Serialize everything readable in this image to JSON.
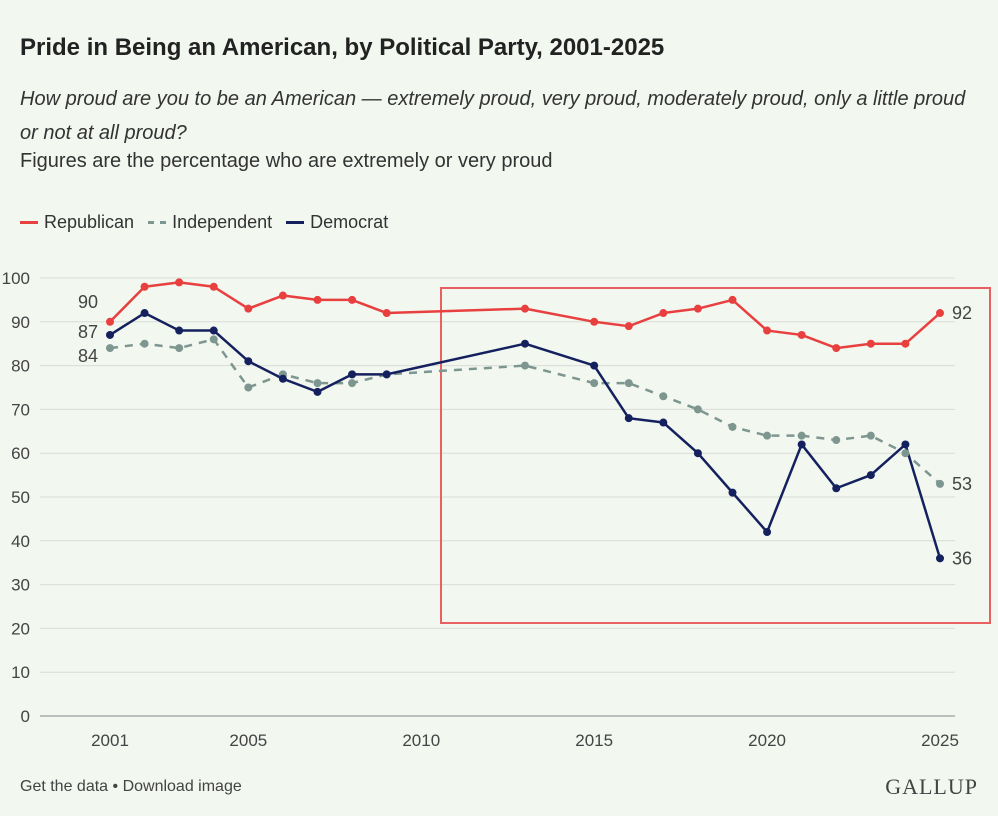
{
  "chart_data": {
    "type": "line",
    "title": "Pride in Being an American, by Political Party, 2001-2025",
    "subtitle": "How proud are you to be an American — extremely proud, very proud, moderately proud, only a little proud or not at all proud?",
    "note": "Figures are the percentage who are extremely or very proud",
    "x": [
      2001,
      2002,
      2003,
      2004,
      2005,
      2006,
      2007,
      2008,
      2009,
      2013,
      2015,
      2016,
      2017,
      2018,
      2019,
      2020,
      2021,
      2022,
      2023,
      2024,
      2025
    ],
    "xticks": [
      "2001",
      "2005",
      "2010",
      "2015",
      "2020",
      "2025"
    ],
    "yticks": [
      "0",
      "10",
      "20",
      "30",
      "40",
      "50",
      "60",
      "70",
      "80",
      "90",
      "100"
    ],
    "xlim": [
      2001,
      2025
    ],
    "ylim": [
      0,
      100
    ],
    "grid": true,
    "legend_position": "top-left",
    "series": [
      {
        "name": "Republican",
        "color": "#e8403f",
        "style": "solid",
        "values": [
          90,
          98,
          99,
          98,
          93,
          96,
          95,
          95,
          92,
          93,
          90,
          89,
          92,
          93,
          95,
          88,
          87,
          84,
          85,
          85,
          92
        ]
      },
      {
        "name": "Independent",
        "color": "#7d9690",
        "style": "dashed",
        "values": [
          84,
          85,
          84,
          86,
          75,
          78,
          76,
          76,
          78,
          80,
          76,
          76,
          73,
          70,
          66,
          64,
          64,
          63,
          64,
          60,
          53
        ]
      },
      {
        "name": "Democrat",
        "color": "#14215e",
        "style": "solid",
        "values": [
          87,
          92,
          88,
          88,
          81,
          77,
          74,
          78,
          78,
          85,
          80,
          68,
          67,
          60,
          51,
          42,
          62,
          52,
          55,
          62,
          36
        ]
      }
    ],
    "annotations": {
      "start_labels": [
        "90",
        "87",
        "84"
      ],
      "end_labels": [
        "92",
        "53",
        "36"
      ],
      "highlight_box_color": "#e8605f"
    }
  },
  "footer": {
    "get_data": "Get the data",
    "separator": " • ",
    "download": "Download image"
  },
  "logo": "GALLUP"
}
